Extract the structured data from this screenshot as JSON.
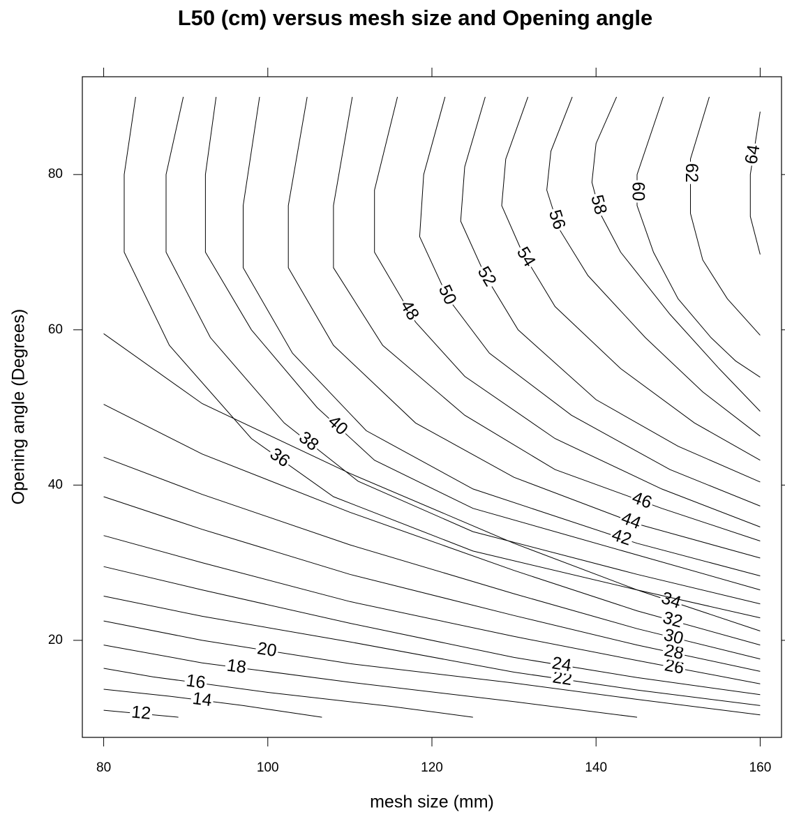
{
  "chart_data": {
    "type": "contour",
    "title": "L50 (cm) versus mesh size and Opening angle",
    "x_label": "mesh size (mm)",
    "y_label": "Opening angle (Degrees)",
    "xlim": [
      77.4,
      162.6
    ],
    "ylim": [
      7.5,
      92.6
    ],
    "xticks": [
      80,
      100,
      120,
      140,
      160
    ],
    "yticks": [
      20,
      40,
      60,
      80
    ],
    "color": "#000000",
    "contours": [
      {
        "level": 12,
        "x": [
          80,
          89.1
        ],
        "y": [
          11.0,
          10.1
        ]
      },
      {
        "level": 14,
        "x": [
          80,
          88,
          97,
          106.6
        ],
        "y": [
          13.7,
          12.8,
          11.6,
          10.1
        ]
      },
      {
        "level": 16,
        "x": [
          80,
          86,
          100,
          115,
          125
        ],
        "y": [
          16.4,
          15.3,
          13.3,
          11.5,
          10.1
        ]
      },
      {
        "level": 18,
        "x": [
          80,
          92,
          110,
          130,
          145
        ],
        "y": [
          19.4,
          17.1,
          14.6,
          12.1,
          10.1
        ]
      },
      {
        "level": 20,
        "x": [
          80,
          92,
          110,
          130,
          145,
          160
        ],
        "y": [
          22.5,
          20.0,
          17.0,
          14.5,
          12.4,
          10.4
        ]
      },
      {
        "level": 22,
        "x": [
          80,
          92,
          110,
          130,
          145,
          160
        ],
        "y": [
          25.7,
          23.1,
          19.8,
          15.9,
          13.6,
          11.6
        ]
      },
      {
        "level": 24,
        "x": [
          80,
          92,
          110,
          130,
          145,
          160
        ],
        "y": [
          29.5,
          26.5,
          22.2,
          17.8,
          15.2,
          13.0
        ]
      },
      {
        "level": 26,
        "x": [
          80,
          92,
          110,
          130,
          145,
          160
        ],
        "y": [
          33.5,
          30.0,
          25.0,
          20.5,
          17.4,
          14.4
        ]
      },
      {
        "level": 28,
        "x": [
          80,
          92,
          110,
          130,
          145,
          160
        ],
        "y": [
          38.5,
          34.3,
          28.5,
          23.2,
          19.4,
          16.0
        ]
      },
      {
        "level": 30,
        "x": [
          80,
          92,
          110,
          130,
          145,
          160
        ],
        "y": [
          43.6,
          38.8,
          32.3,
          26.0,
          21.5,
          17.6
        ]
      },
      {
        "level": 32,
        "x": [
          80,
          92,
          110,
          130,
          145,
          160
        ],
        "y": [
          50.4,
          44.0,
          36.5,
          29.0,
          23.8,
          19.4
        ]
      },
      {
        "level": 34,
        "x": [
          80,
          92,
          110,
          130,
          145,
          160
        ],
        "y": [
          59.5,
          50.5,
          41.5,
          32.5,
          26.5,
          21.2
        ]
      },
      {
        "level": 36,
        "x": [
          83.9,
          82.5,
          82.5,
          88,
          98,
          108,
          125,
          145,
          160
        ],
        "y": [
          90,
          80,
          70,
          58,
          46,
          38.5,
          31.5,
          26.5,
          22.9
        ]
      },
      {
        "level": 38,
        "x": [
          89.7,
          87.6,
          87.6,
          93,
          102,
          111,
          125,
          145,
          160
        ],
        "y": [
          90,
          80,
          70,
          59,
          48,
          40.5,
          34,
          28.5,
          24.7
        ]
      },
      {
        "level": 40,
        "x": [
          93.7,
          92.4,
          92.4,
          98,
          106,
          113,
          125,
          145,
          160
        ],
        "y": [
          90,
          80,
          70,
          60,
          50,
          43.2,
          37,
          31,
          26.5
        ]
      },
      {
        "level": 42,
        "x": [
          99,
          97,
          97,
          103,
          112,
          125,
          145,
          160
        ],
        "y": [
          90,
          76,
          68,
          57,
          47,
          39.5,
          32.5,
          28.3
        ]
      },
      {
        "level": 44,
        "x": [
          104.8,
          102.5,
          102.5,
          108,
          118,
          130,
          145,
          160
        ],
        "y": [
          90,
          76,
          68,
          58,
          48,
          41,
          35,
          30.6
        ]
      },
      {
        "level": 46,
        "x": [
          110.3,
          108,
          108,
          114,
          124,
          135,
          148,
          160
        ],
        "y": [
          90,
          76,
          68,
          58,
          49,
          42,
          37,
          32.8
        ]
      },
      {
        "level": 48,
        "x": [
          115.8,
          113,
          113,
          118,
          124,
          135,
          148,
          160
        ],
        "y": [
          90,
          78,
          70,
          61,
          54,
          46,
          39.5,
          34.6
        ]
      },
      {
        "level": 50,
        "x": [
          121.6,
          119,
          118.5,
          122,
          127,
          137,
          149,
          160
        ],
        "y": [
          90,
          80,
          72,
          64,
          57,
          49,
          42,
          37.3
        ]
      },
      {
        "level": 52,
        "x": [
          126.5,
          124,
          123.5,
          126.5,
          130.5,
          140,
          150,
          160
        ],
        "y": [
          90,
          81,
          74,
          67,
          60,
          51,
          45,
          40.4
        ]
      },
      {
        "level": 54,
        "x": [
          131.7,
          129,
          128.5,
          131,
          135,
          143,
          152,
          160
        ],
        "y": [
          90,
          82,
          76,
          70,
          63,
          55,
          48,
          43.2
        ]
      },
      {
        "level": 56,
        "x": [
          137.1,
          134.5,
          134,
          135.5,
          139,
          146,
          153,
          160
        ],
        "y": [
          90,
          83,
          78,
          73,
          67,
          59,
          52,
          46.3
        ]
      },
      {
        "level": 58,
        "x": [
          142.5,
          140,
          139.5,
          140.5,
          143,
          149,
          155,
          160
        ],
        "y": [
          90,
          84,
          79,
          75,
          70,
          62,
          55,
          49.5
        ]
      },
      {
        "level": 60,
        "x": [
          148.2,
          145,
          145,
          147,
          150,
          154,
          157,
          160
        ],
        "y": [
          90,
          80,
          76,
          70,
          64,
          59,
          56,
          53.9
        ]
      },
      {
        "level": 62,
        "x": [
          153.8,
          151.5,
          151.5,
          153,
          156,
          160
        ],
        "y": [
          90,
          82,
          75,
          69,
          64,
          59.3
        ]
      },
      {
        "level": 64,
        "x": [
          160,
          158.8,
          158.8,
          160
        ],
        "y": [
          88.1,
          80,
          74.6,
          69.7
        ]
      }
    ]
  }
}
